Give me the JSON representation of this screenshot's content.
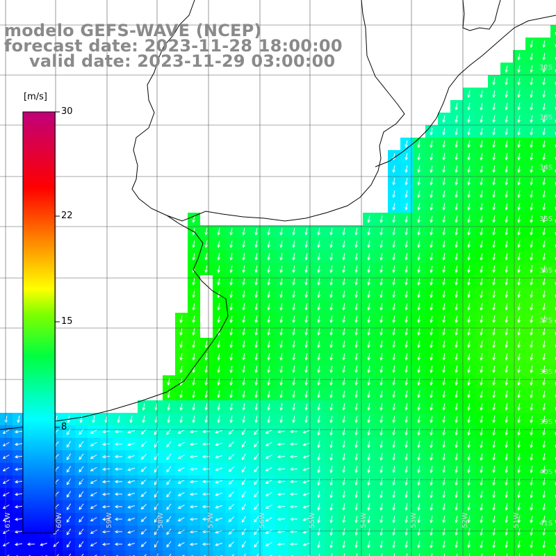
{
  "title": {
    "model": "modelo GEFS-WAVE (NCEP)",
    "forecast": "forecast date: 2023-11-28 18:00:00",
    "valid": "valid date: 2023-11-29 03:00:00"
  },
  "colorbar": {
    "unit": "[m/s]",
    "ticks": [
      "30",
      "22",
      "15",
      "8"
    ],
    "tick_values": [
      30,
      22,
      15,
      8
    ],
    "range": [
      0,
      30
    ],
    "colors": [
      "#0000ff",
      "#0070ff",
      "#00ffff",
      "#00ff00",
      "#ffff00",
      "#ff8000",
      "#ff0000",
      "#c00080"
    ]
  },
  "map": {
    "land_color": "#ffffff",
    "grid_color": "#555555",
    "arrow_color": "#ffffff",
    "lat_labels": [
      "32S",
      "33S",
      "34S",
      "35S",
      "36S",
      "37S",
      "38S",
      "39S",
      "40S",
      "41S"
    ],
    "lon_labels": [
      "61W",
      "60W",
      "59W",
      "58W",
      "57W",
      "56W",
      "55W",
      "54W",
      "53W",
      "52W",
      "51W"
    ]
  }
}
